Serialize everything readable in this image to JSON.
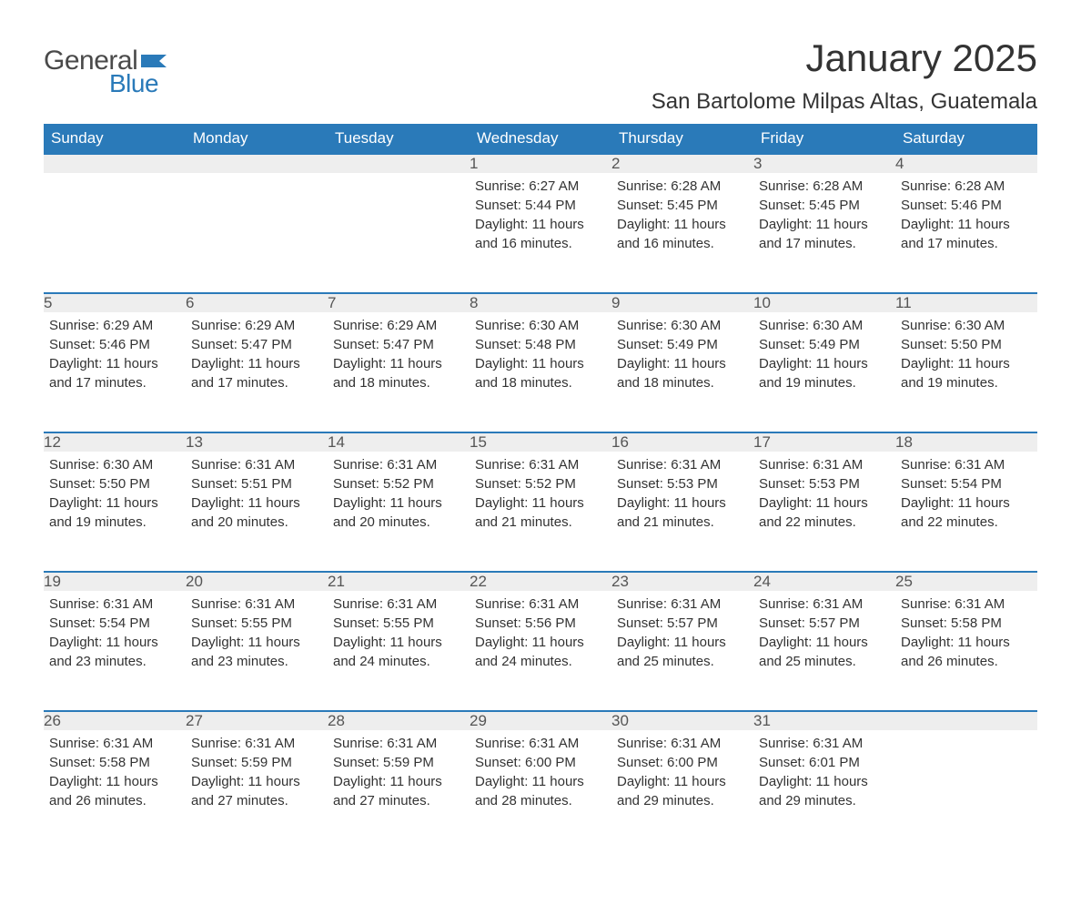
{
  "logo": {
    "text_general": "General",
    "text_blue": "Blue",
    "flag_color": "#2a7ab9"
  },
  "title": "January 2025",
  "location": "San Bartolome Milpas Altas, Guatemala",
  "colors": {
    "header_bg": "#2a7ab9",
    "header_text": "#ffffff",
    "daynum_bg": "#eeeeee",
    "daynum_border": "#2a7ab9",
    "body_text": "#333333",
    "page_bg": "#ffffff"
  },
  "day_headers": [
    "Sunday",
    "Monday",
    "Tuesday",
    "Wednesday",
    "Thursday",
    "Friday",
    "Saturday"
  ],
  "weeks": [
    [
      null,
      null,
      null,
      {
        "day": "1",
        "sunrise": "Sunrise: 6:27 AM",
        "sunset": "Sunset: 5:44 PM",
        "daylight": "Daylight: 11 hours and 16 minutes."
      },
      {
        "day": "2",
        "sunrise": "Sunrise: 6:28 AM",
        "sunset": "Sunset: 5:45 PM",
        "daylight": "Daylight: 11 hours and 16 minutes."
      },
      {
        "day": "3",
        "sunrise": "Sunrise: 6:28 AM",
        "sunset": "Sunset: 5:45 PM",
        "daylight": "Daylight: 11 hours and 17 minutes."
      },
      {
        "day": "4",
        "sunrise": "Sunrise: 6:28 AM",
        "sunset": "Sunset: 5:46 PM",
        "daylight": "Daylight: 11 hours and 17 minutes."
      }
    ],
    [
      {
        "day": "5",
        "sunrise": "Sunrise: 6:29 AM",
        "sunset": "Sunset: 5:46 PM",
        "daylight": "Daylight: 11 hours and 17 minutes."
      },
      {
        "day": "6",
        "sunrise": "Sunrise: 6:29 AM",
        "sunset": "Sunset: 5:47 PM",
        "daylight": "Daylight: 11 hours and 17 minutes."
      },
      {
        "day": "7",
        "sunrise": "Sunrise: 6:29 AM",
        "sunset": "Sunset: 5:47 PM",
        "daylight": "Daylight: 11 hours and 18 minutes."
      },
      {
        "day": "8",
        "sunrise": "Sunrise: 6:30 AM",
        "sunset": "Sunset: 5:48 PM",
        "daylight": "Daylight: 11 hours and 18 minutes."
      },
      {
        "day": "9",
        "sunrise": "Sunrise: 6:30 AM",
        "sunset": "Sunset: 5:49 PM",
        "daylight": "Daylight: 11 hours and 18 minutes."
      },
      {
        "day": "10",
        "sunrise": "Sunrise: 6:30 AM",
        "sunset": "Sunset: 5:49 PM",
        "daylight": "Daylight: 11 hours and 19 minutes."
      },
      {
        "day": "11",
        "sunrise": "Sunrise: 6:30 AM",
        "sunset": "Sunset: 5:50 PM",
        "daylight": "Daylight: 11 hours and 19 minutes."
      }
    ],
    [
      {
        "day": "12",
        "sunrise": "Sunrise: 6:30 AM",
        "sunset": "Sunset: 5:50 PM",
        "daylight": "Daylight: 11 hours and 19 minutes."
      },
      {
        "day": "13",
        "sunrise": "Sunrise: 6:31 AM",
        "sunset": "Sunset: 5:51 PM",
        "daylight": "Daylight: 11 hours and 20 minutes."
      },
      {
        "day": "14",
        "sunrise": "Sunrise: 6:31 AM",
        "sunset": "Sunset: 5:52 PM",
        "daylight": "Daylight: 11 hours and 20 minutes."
      },
      {
        "day": "15",
        "sunrise": "Sunrise: 6:31 AM",
        "sunset": "Sunset: 5:52 PM",
        "daylight": "Daylight: 11 hours and 21 minutes."
      },
      {
        "day": "16",
        "sunrise": "Sunrise: 6:31 AM",
        "sunset": "Sunset: 5:53 PM",
        "daylight": "Daylight: 11 hours and 21 minutes."
      },
      {
        "day": "17",
        "sunrise": "Sunrise: 6:31 AM",
        "sunset": "Sunset: 5:53 PM",
        "daylight": "Daylight: 11 hours and 22 minutes."
      },
      {
        "day": "18",
        "sunrise": "Sunrise: 6:31 AM",
        "sunset": "Sunset: 5:54 PM",
        "daylight": "Daylight: 11 hours and 22 minutes."
      }
    ],
    [
      {
        "day": "19",
        "sunrise": "Sunrise: 6:31 AM",
        "sunset": "Sunset: 5:54 PM",
        "daylight": "Daylight: 11 hours and 23 minutes."
      },
      {
        "day": "20",
        "sunrise": "Sunrise: 6:31 AM",
        "sunset": "Sunset: 5:55 PM",
        "daylight": "Daylight: 11 hours and 23 minutes."
      },
      {
        "day": "21",
        "sunrise": "Sunrise: 6:31 AM",
        "sunset": "Sunset: 5:55 PM",
        "daylight": "Daylight: 11 hours and 24 minutes."
      },
      {
        "day": "22",
        "sunrise": "Sunrise: 6:31 AM",
        "sunset": "Sunset: 5:56 PM",
        "daylight": "Daylight: 11 hours and 24 minutes."
      },
      {
        "day": "23",
        "sunrise": "Sunrise: 6:31 AM",
        "sunset": "Sunset: 5:57 PM",
        "daylight": "Daylight: 11 hours and 25 minutes."
      },
      {
        "day": "24",
        "sunrise": "Sunrise: 6:31 AM",
        "sunset": "Sunset: 5:57 PM",
        "daylight": "Daylight: 11 hours and 25 minutes."
      },
      {
        "day": "25",
        "sunrise": "Sunrise: 6:31 AM",
        "sunset": "Sunset: 5:58 PM",
        "daylight": "Daylight: 11 hours and 26 minutes."
      }
    ],
    [
      {
        "day": "26",
        "sunrise": "Sunrise: 6:31 AM",
        "sunset": "Sunset: 5:58 PM",
        "daylight": "Daylight: 11 hours and 26 minutes."
      },
      {
        "day": "27",
        "sunrise": "Sunrise: 6:31 AM",
        "sunset": "Sunset: 5:59 PM",
        "daylight": "Daylight: 11 hours and 27 minutes."
      },
      {
        "day": "28",
        "sunrise": "Sunrise: 6:31 AM",
        "sunset": "Sunset: 5:59 PM",
        "daylight": "Daylight: 11 hours and 27 minutes."
      },
      {
        "day": "29",
        "sunrise": "Sunrise: 6:31 AM",
        "sunset": "Sunset: 6:00 PM",
        "daylight": "Daylight: 11 hours and 28 minutes."
      },
      {
        "day": "30",
        "sunrise": "Sunrise: 6:31 AM",
        "sunset": "Sunset: 6:00 PM",
        "daylight": "Daylight: 11 hours and 29 minutes."
      },
      {
        "day": "31",
        "sunrise": "Sunrise: 6:31 AM",
        "sunset": "Sunset: 6:01 PM",
        "daylight": "Daylight: 11 hours and 29 minutes."
      },
      null
    ]
  ]
}
